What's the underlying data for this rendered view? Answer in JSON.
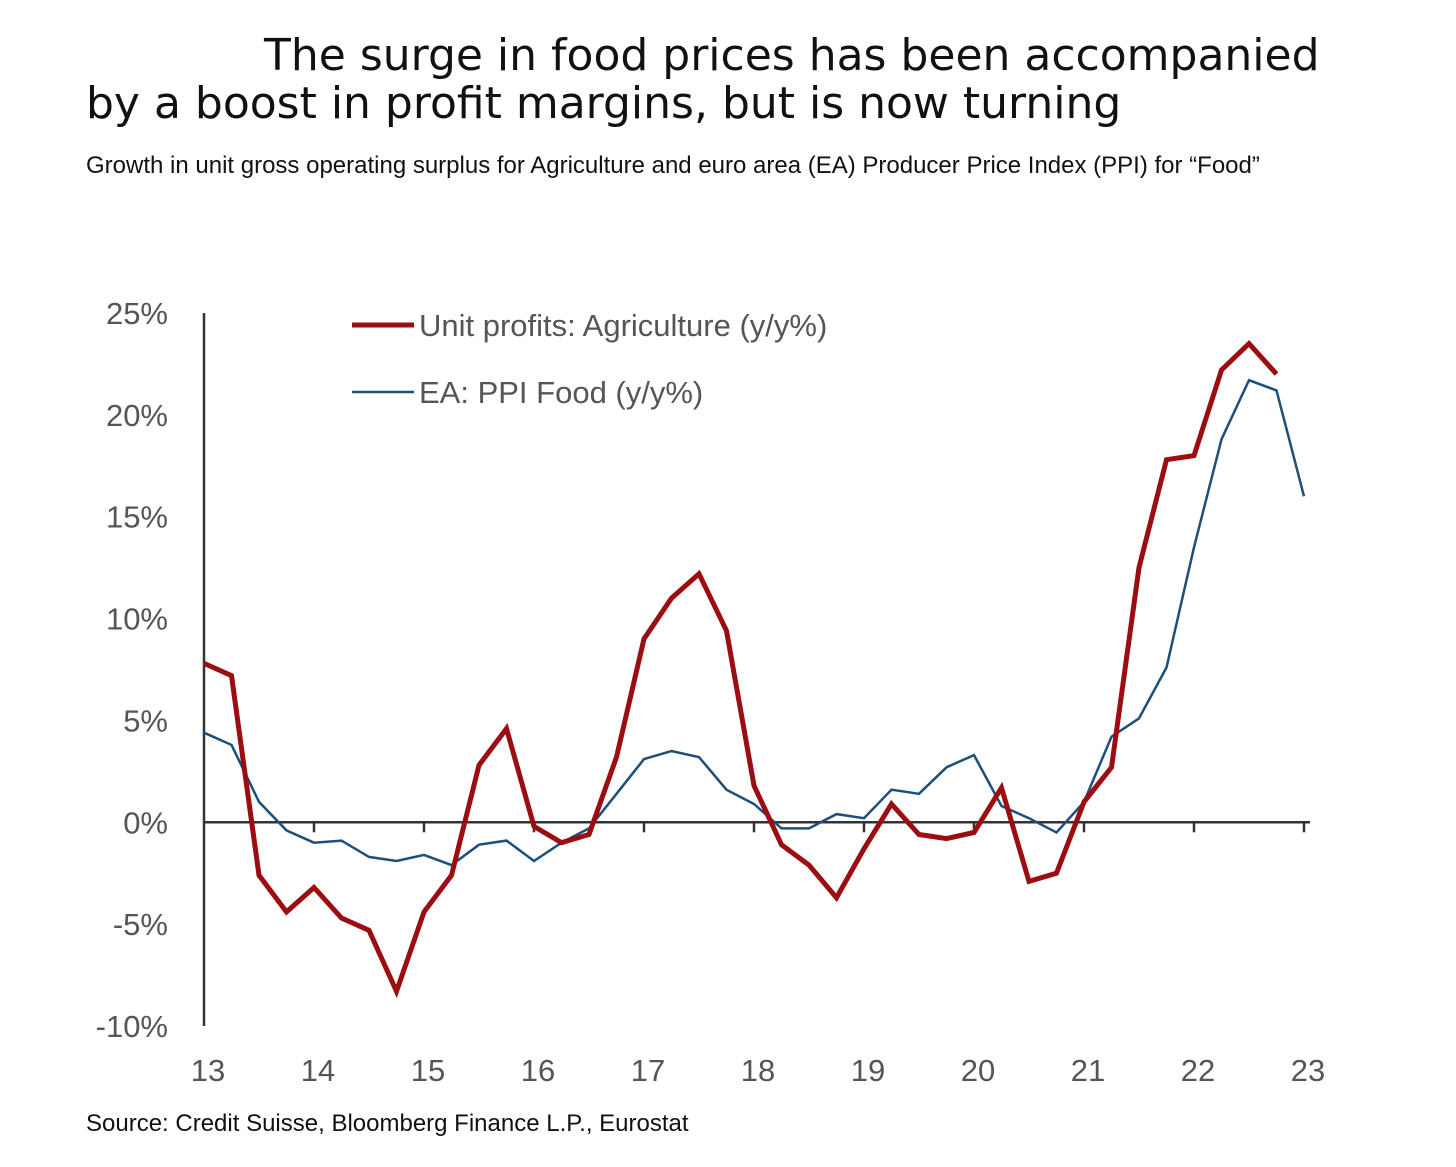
{
  "header": {
    "title": "The surge in food prices has been accompanied by a boost in profit margins, but is now turning",
    "subtitle": "Growth in unit gross operating surplus for Agriculture and euro area (EA) Producer Price Index (PPI) for “Food”"
  },
  "footer": {
    "source": "Source: Credit Suisse, Bloomberg Finance L.P., Eurostat"
  },
  "chart_data": {
    "type": "line",
    "title": "The surge in food prices has been accompanied by a boost in profit margins, but is now turning",
    "subtitle": "Growth in unit gross operating surplus for Agriculture and euro area (EA) Producer Price Index (PPI) for “Food”",
    "x_ticks": [
      "13",
      "14",
      "15",
      "16",
      "17",
      "18",
      "19",
      "20",
      "21",
      "22",
      "23"
    ],
    "x_tick_values": [
      2013,
      2014,
      2015,
      2016,
      2017,
      2018,
      2019,
      2020,
      2021,
      2022,
      2023
    ],
    "y_ticks": [
      "25%",
      "20%",
      "15%",
      "10%",
      "5%",
      "0%",
      "-5%",
      "-10%"
    ],
    "y_tick_values": [
      25,
      20,
      15,
      10,
      5,
      0,
      -5,
      -10
    ],
    "xlim": [
      2013,
      2023
    ],
    "ylim": [
      -10,
      25
    ],
    "grid": false,
    "legend_position": "top-left",
    "colors": {
      "agriculture": "#9b0d10",
      "ppi": "#1c4f7c",
      "axis": "#333333"
    },
    "series": [
      {
        "name": "Unit profits: Agriculture (y/y%)",
        "color": "#9b0d10",
        "points": [
          [
            2013.0,
            7.8
          ],
          [
            2013.25,
            7.2
          ],
          [
            2013.5,
            -2.6
          ],
          [
            2013.75,
            -4.4
          ],
          [
            2014.0,
            -3.2
          ],
          [
            2014.25,
            -4.7
          ],
          [
            2014.5,
            -5.3
          ],
          [
            2014.75,
            -8.3
          ],
          [
            2015.0,
            -4.4
          ],
          [
            2015.25,
            -2.6
          ],
          [
            2015.5,
            2.8
          ],
          [
            2015.75,
            4.6
          ],
          [
            2016.0,
            -0.2
          ],
          [
            2016.25,
            -1.0
          ],
          [
            2016.5,
            -0.6
          ],
          [
            2016.75,
            3.2
          ],
          [
            2017.0,
            9.0
          ],
          [
            2017.25,
            11.0
          ],
          [
            2017.5,
            12.2
          ],
          [
            2017.75,
            9.4
          ],
          [
            2018.0,
            1.8
          ],
          [
            2018.25,
            -1.1
          ],
          [
            2018.5,
            -2.1
          ],
          [
            2018.75,
            -3.7
          ],
          [
            2019.0,
            -1.3
          ],
          [
            2019.25,
            0.9
          ],
          [
            2019.5,
            -0.6
          ],
          [
            2019.75,
            -0.8
          ],
          [
            2020.0,
            -0.5
          ],
          [
            2020.25,
            1.7
          ],
          [
            2020.5,
            -2.9
          ],
          [
            2020.75,
            -2.5
          ],
          [
            2021.0,
            1.0
          ],
          [
            2021.25,
            2.7
          ],
          [
            2021.5,
            12.5
          ],
          [
            2021.75,
            17.8
          ],
          [
            2022.0,
            18.0
          ],
          [
            2022.25,
            22.2
          ],
          [
            2022.5,
            23.5
          ],
          [
            2022.75,
            22.0
          ]
        ]
      },
      {
        "name": "EA: PPI Food (y/y%)",
        "color": "#1c4f7c",
        "points": [
          [
            2013.0,
            4.4
          ],
          [
            2013.25,
            3.8
          ],
          [
            2013.5,
            1.0
          ],
          [
            2013.75,
            -0.4
          ],
          [
            2014.0,
            -1.0
          ],
          [
            2014.25,
            -0.9
          ],
          [
            2014.5,
            -1.7
          ],
          [
            2014.75,
            -1.9
          ],
          [
            2015.0,
            -1.6
          ],
          [
            2015.25,
            -2.1
          ],
          [
            2015.5,
            -1.1
          ],
          [
            2015.75,
            -0.9
          ],
          [
            2016.0,
            -1.9
          ],
          [
            2016.25,
            -1.0
          ],
          [
            2016.5,
            -0.3
          ],
          [
            2016.75,
            1.4
          ],
          [
            2017.0,
            3.1
          ],
          [
            2017.25,
            3.5
          ],
          [
            2017.5,
            3.2
          ],
          [
            2017.75,
            1.6
          ],
          [
            2018.0,
            0.9
          ],
          [
            2018.25,
            -0.3
          ],
          [
            2018.5,
            -0.3
          ],
          [
            2018.75,
            0.4
          ],
          [
            2019.0,
            0.2
          ],
          [
            2019.25,
            1.6
          ],
          [
            2019.5,
            1.4
          ],
          [
            2019.75,
            2.7
          ],
          [
            2020.0,
            3.3
          ],
          [
            2020.25,
            0.8
          ],
          [
            2020.5,
            0.2
          ],
          [
            2020.75,
            -0.5
          ],
          [
            2021.0,
            1.0
          ],
          [
            2021.25,
            4.2
          ],
          [
            2021.5,
            5.1
          ],
          [
            2021.75,
            7.6
          ],
          [
            2022.0,
            13.5
          ],
          [
            2022.25,
            18.8
          ],
          [
            2022.5,
            21.7
          ],
          [
            2022.75,
            21.2
          ],
          [
            2023.0,
            16.0
          ]
        ]
      }
    ]
  }
}
